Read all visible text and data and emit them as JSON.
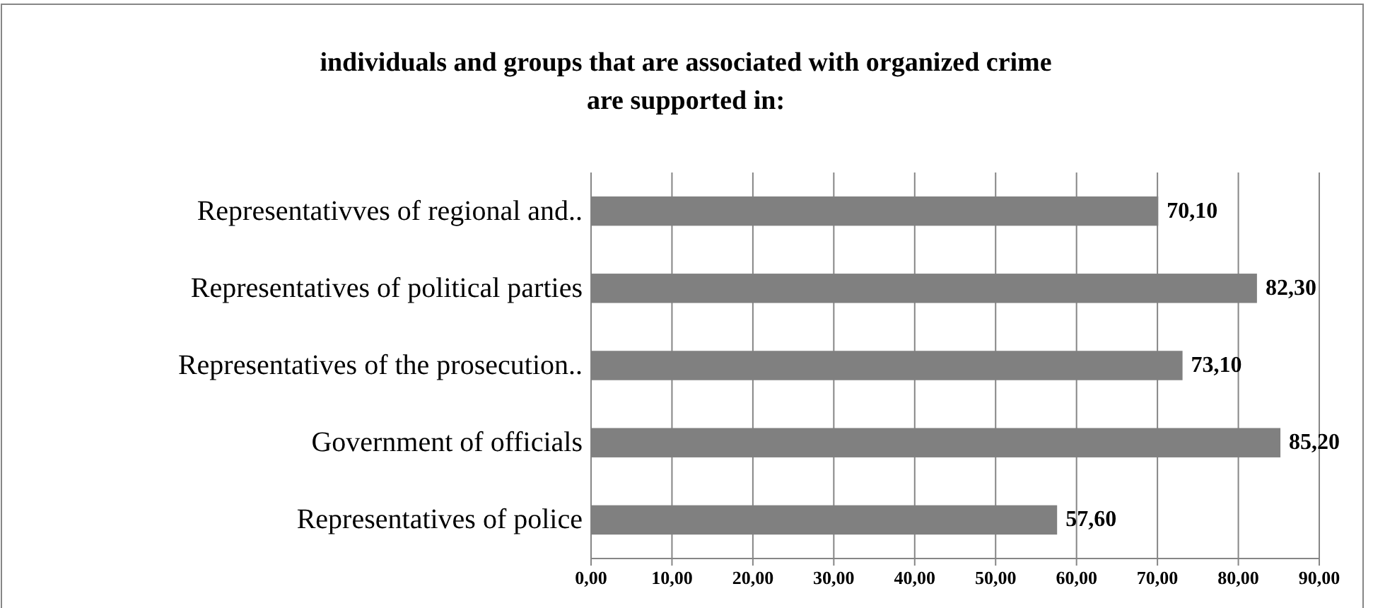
{
  "chart_data": {
    "type": "bar",
    "orientation": "horizontal",
    "title": "individuals and groups that are associated with organized crime\nare supported in:",
    "categories": [
      "Representativves of regional and..",
      "Representatives of political parties",
      "Representatives of the prosecution..",
      "Government of officials",
      "Representatives of police"
    ],
    "values": [
      70.1,
      82.3,
      73.1,
      85.2,
      57.6
    ],
    "color": "#808080",
    "value_labels": [
      "70,10",
      "82,30",
      "73,10",
      "85,20",
      "57,60"
    ],
    "xlim": [
      0,
      90
    ],
    "xticks": [
      {
        "value": 0,
        "label": "0,00"
      },
      {
        "value": 10,
        "label": "10,00"
      },
      {
        "value": 20,
        "label": "20,00"
      },
      {
        "value": 30,
        "label": "30,00"
      },
      {
        "value": 40,
        "label": "40,00"
      },
      {
        "value": 50,
        "label": "50,00"
      },
      {
        "value": 60,
        "label": "60,00"
      },
      {
        "value": 70,
        "label": "70,00"
      },
      {
        "value": 80,
        "label": "80,00"
      },
      {
        "value": 90,
        "label": "90,00"
      }
    ],
    "grid": "x"
  }
}
